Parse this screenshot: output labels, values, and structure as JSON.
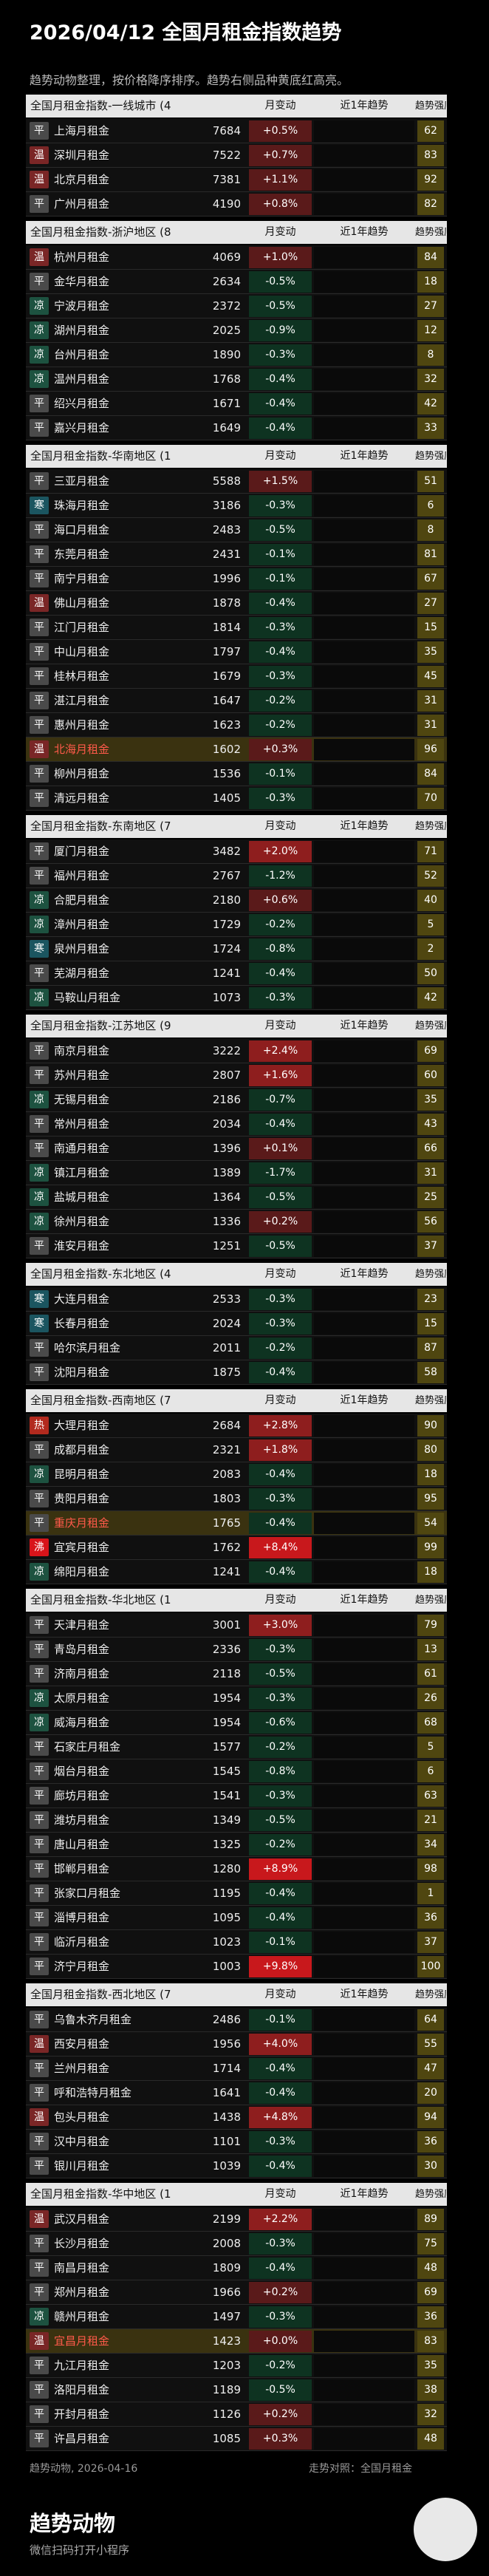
{
  "header": {
    "title": "2026/04/12 全国月租金指数趋势",
    "subtitle": "趋势动物整理，按价格降序排序。趋势右侧品种黄底红高亮。"
  },
  "columns": {
    "change": "月变动",
    "trend": "近1年趋势",
    "strength": "趋势强度"
  },
  "sections": [
    {
      "title": "全国月租金指数-一线城市 (4",
      "rows": [
        {
          "tag": "平",
          "name": "上海月租金",
          "price": 7684,
          "change": "+0.5%",
          "strength": 62
        },
        {
          "tag": "温",
          "name": "深圳月租金",
          "price": 7522,
          "change": "+0.7%",
          "strength": 83
        },
        {
          "tag": "温",
          "name": "北京月租金",
          "price": 7381,
          "change": "+1.1%",
          "strength": 92
        },
        {
          "tag": "平",
          "name": "广州月租金",
          "price": 4190,
          "change": "+0.8%",
          "strength": 82
        }
      ]
    },
    {
      "title": "全国月租金指数-浙沪地区 (8",
      "rows": [
        {
          "tag": "温",
          "name": "杭州月租金",
          "price": 4069,
          "change": "+1.0%",
          "strength": 84
        },
        {
          "tag": "平",
          "name": "金华月租金",
          "price": 2634,
          "change": "-0.5%",
          "strength": 18
        },
        {
          "tag": "凉",
          "name": "宁波月租金",
          "price": 2372,
          "change": "-0.5%",
          "strength": 27
        },
        {
          "tag": "凉",
          "name": "湖州月租金",
          "price": 2025,
          "change": "-0.9%",
          "strength": 12
        },
        {
          "tag": "凉",
          "name": "台州月租金",
          "price": 1890,
          "change": "-0.3%",
          "strength": 8
        },
        {
          "tag": "凉",
          "name": "温州月租金",
          "price": 1768,
          "change": "-0.4%",
          "strength": 32
        },
        {
          "tag": "平",
          "name": "绍兴月租金",
          "price": 1671,
          "change": "-0.4%",
          "strength": 42
        },
        {
          "tag": "平",
          "name": "嘉兴月租金",
          "price": 1649,
          "change": "-0.4%",
          "strength": 33
        }
      ]
    },
    {
      "title": "全国月租金指数-华南地区 (1",
      "rows": [
        {
          "tag": "平",
          "name": "三亚月租金",
          "price": 5588,
          "change": "+1.5%",
          "strength": 51
        },
        {
          "tag": "寒",
          "name": "珠海月租金",
          "price": 3186,
          "change": "-0.3%",
          "strength": 6
        },
        {
          "tag": "平",
          "name": "海口月租金",
          "price": 2483,
          "change": "-0.5%",
          "strength": 8
        },
        {
          "tag": "平",
          "name": "东莞月租金",
          "price": 2431,
          "change": "-0.1%",
          "strength": 81
        },
        {
          "tag": "平",
          "name": "南宁月租金",
          "price": 1996,
          "change": "-0.1%",
          "strength": 67
        },
        {
          "tag": "温",
          "name": "佛山月租金",
          "price": 1878,
          "change": "-0.4%",
          "strength": 27
        },
        {
          "tag": "平",
          "name": "江门月租金",
          "price": 1814,
          "change": "-0.3%",
          "strength": 15
        },
        {
          "tag": "平",
          "name": "中山月租金",
          "price": 1797,
          "change": "-0.4%",
          "strength": 35
        },
        {
          "tag": "平",
          "name": "桂林月租金",
          "price": 1679,
          "change": "-0.3%",
          "strength": 45
        },
        {
          "tag": "平",
          "name": "湛江月租金",
          "price": 1647,
          "change": "-0.2%",
          "strength": 31
        },
        {
          "tag": "平",
          "name": "惠州月租金",
          "price": 1623,
          "change": "-0.2%",
          "strength": 31
        },
        {
          "tag": "温",
          "name": "北海月租金",
          "price": 1602,
          "change": "+0.3%",
          "strength": 96,
          "highlight": true
        },
        {
          "tag": "平",
          "name": "柳州月租金",
          "price": 1536,
          "change": "-0.1%",
          "strength": 84
        },
        {
          "tag": "平",
          "name": "清远月租金",
          "price": 1405,
          "change": "-0.3%",
          "strength": 70
        }
      ]
    },
    {
      "title": "全国月租金指数-东南地区 (7",
      "rows": [
        {
          "tag": "平",
          "name": "厦门月租金",
          "price": 3482,
          "change": "+2.0%",
          "strength": 71
        },
        {
          "tag": "平",
          "name": "福州月租金",
          "price": 2767,
          "change": "-1.2%",
          "strength": 52
        },
        {
          "tag": "凉",
          "name": "合肥月租金",
          "price": 2180,
          "change": "+0.6%",
          "strength": 40
        },
        {
          "tag": "凉",
          "name": "漳州月租金",
          "price": 1729,
          "change": "-0.2%",
          "strength": 5
        },
        {
          "tag": "寒",
          "name": "泉州月租金",
          "price": 1724,
          "change": "-0.8%",
          "strength": 2
        },
        {
          "tag": "平",
          "name": "芜湖月租金",
          "price": 1241,
          "change": "-0.4%",
          "strength": 50
        },
        {
          "tag": "凉",
          "name": "马鞍山月租金",
          "price": 1073,
          "change": "-0.3%",
          "strength": 42
        }
      ]
    },
    {
      "title": "全国月租金指数-江苏地区 (9",
      "rows": [
        {
          "tag": "平",
          "name": "南京月租金",
          "price": 3222,
          "change": "+2.4%",
          "strength": 69
        },
        {
          "tag": "平",
          "name": "苏州月租金",
          "price": 2807,
          "change": "+1.6%",
          "strength": 60
        },
        {
          "tag": "凉",
          "name": "无锡月租金",
          "price": 2186,
          "change": "-0.7%",
          "strength": 35
        },
        {
          "tag": "平",
          "name": "常州月租金",
          "price": 2034,
          "change": "-0.4%",
          "strength": 43
        },
        {
          "tag": "平",
          "name": "南通月租金",
          "price": 1396,
          "change": "+0.1%",
          "strength": 66
        },
        {
          "tag": "凉",
          "name": "镇江月租金",
          "price": 1389,
          "change": "-1.7%",
          "strength": 31
        },
        {
          "tag": "凉",
          "name": "盐城月租金",
          "price": 1364,
          "change": "-0.5%",
          "strength": 25
        },
        {
          "tag": "凉",
          "name": "徐州月租金",
          "price": 1336,
          "change": "+0.2%",
          "strength": 56
        },
        {
          "tag": "平",
          "name": "淮安月租金",
          "price": 1251,
          "change": "-0.5%",
          "strength": 37
        }
      ]
    },
    {
      "title": "全国月租金指数-东北地区 (4",
      "rows": [
        {
          "tag": "寒",
          "name": "大连月租金",
          "price": 2533,
          "change": "-0.3%",
          "strength": 23
        },
        {
          "tag": "寒",
          "name": "长春月租金",
          "price": 2024,
          "change": "-0.3%",
          "strength": 15
        },
        {
          "tag": "平",
          "name": "哈尔滨月租金",
          "price": 2011,
          "change": "-0.2%",
          "strength": 87
        },
        {
          "tag": "平",
          "name": "沈阳月租金",
          "price": 1875,
          "change": "-0.4%",
          "strength": 58
        }
      ]
    },
    {
      "title": "全国月租金指数-西南地区 (7",
      "rows": [
        {
          "tag": "热",
          "name": "大理月租金",
          "price": 2684,
          "change": "+2.8%",
          "strength": 90
        },
        {
          "tag": "平",
          "name": "成都月租金",
          "price": 2321,
          "change": "+1.8%",
          "strength": 80
        },
        {
          "tag": "凉",
          "name": "昆明月租金",
          "price": 2083,
          "change": "-0.4%",
          "strength": 18
        },
        {
          "tag": "平",
          "name": "贵阳月租金",
          "price": 1803,
          "change": "-0.3%",
          "strength": 95
        },
        {
          "tag": "平",
          "name": "重庆月租金",
          "price": 1765,
          "change": "-0.4%",
          "strength": 54,
          "highlight": true
        },
        {
          "tag": "沸",
          "name": "宜宾月租金",
          "price": 1762,
          "change": "+8.4%",
          "strength": 99
        },
        {
          "tag": "凉",
          "name": "绵阳月租金",
          "price": 1241,
          "change": "-0.4%",
          "strength": 18
        }
      ]
    },
    {
      "title": "全国月租金指数-华北地区 (1",
      "rows": [
        {
          "tag": "平",
          "name": "天津月租金",
          "price": 3001,
          "change": "+3.0%",
          "strength": 79
        },
        {
          "tag": "平",
          "name": "青岛月租金",
          "price": 2336,
          "change": "-0.3%",
          "strength": 13
        },
        {
          "tag": "平",
          "name": "济南月租金",
          "price": 2118,
          "change": "-0.5%",
          "strength": 61
        },
        {
          "tag": "凉",
          "name": "太原月租金",
          "price": 1954,
          "change": "-0.3%",
          "strength": 26
        },
        {
          "tag": "凉",
          "name": "威海月租金",
          "price": 1954,
          "change": "-0.6%",
          "strength": 68
        },
        {
          "tag": "平",
          "name": "石家庄月租金",
          "price": 1577,
          "change": "-0.2%",
          "strength": 5
        },
        {
          "tag": "平",
          "name": "烟台月租金",
          "price": 1545,
          "change": "-0.8%",
          "strength": 6
        },
        {
          "tag": "平",
          "name": "廊坊月租金",
          "price": 1541,
          "change": "-0.3%",
          "strength": 63
        },
        {
          "tag": "平",
          "name": "潍坊月租金",
          "price": 1349,
          "change": "-0.5%",
          "strength": 21
        },
        {
          "tag": "平",
          "name": "唐山月租金",
          "price": 1325,
          "change": "-0.2%",
          "strength": 34
        },
        {
          "tag": "平",
          "name": "邯郸月租金",
          "price": 1280,
          "change": "+8.9%",
          "strength": 98
        },
        {
          "tag": "平",
          "name": "张家口月租金",
          "price": 1195,
          "change": "-0.4%",
          "strength": 1
        },
        {
          "tag": "平",
          "name": "淄博月租金",
          "price": 1095,
          "change": "-0.4%",
          "strength": 36
        },
        {
          "tag": "平",
          "name": "临沂月租金",
          "price": 1023,
          "change": "-0.1%",
          "strength": 37
        },
        {
          "tag": "平",
          "name": "济宁月租金",
          "price": 1003,
          "change": "+9.8%",
          "strength": 100
        }
      ]
    },
    {
      "title": "全国月租金指数-西北地区 (7",
      "rows": [
        {
          "tag": "平",
          "name": "乌鲁木齐月租金",
          "price": 2486,
          "change": "-0.1%",
          "strength": 64
        },
        {
          "tag": "温",
          "name": "西安月租金",
          "price": 1956,
          "change": "+4.0%",
          "strength": 55
        },
        {
          "tag": "平",
          "name": "兰州月租金",
          "price": 1714,
          "change": "-0.4%",
          "strength": 47
        },
        {
          "tag": "平",
          "name": "呼和浩特月租金",
          "price": 1641,
          "change": "-0.4%",
          "strength": 20
        },
        {
          "tag": "温",
          "name": "包头月租金",
          "price": 1438,
          "change": "+4.8%",
          "strength": 94
        },
        {
          "tag": "平",
          "name": "汉中月租金",
          "price": 1101,
          "change": "-0.3%",
          "strength": 36
        },
        {
          "tag": "平",
          "name": "银川月租金",
          "price": 1039,
          "change": "-0.4%",
          "strength": 30
        }
      ]
    },
    {
      "title": "全国月租金指数-华中地区 (1",
      "rows": [
        {
          "tag": "温",
          "name": "武汉月租金",
          "price": 2199,
          "change": "+2.2%",
          "strength": 89
        },
        {
          "tag": "平",
          "name": "长沙月租金",
          "price": 2008,
          "change": "-0.3%",
          "strength": 75
        },
        {
          "tag": "平",
          "name": "南昌月租金",
          "price": 1809,
          "change": "-0.4%",
          "strength": 48
        },
        {
          "tag": "平",
          "name": "郑州月租金",
          "price": 1966,
          "change": "+0.2%",
          "strength": 69
        },
        {
          "tag": "凉",
          "name": "赣州月租金",
          "price": 1497,
          "change": "-0.3%",
          "strength": 36
        },
        {
          "tag": "温",
          "name": "宜昌月租金",
          "price": 1423,
          "change": "+0.0%",
          "strength": 83,
          "highlight": true
        },
        {
          "tag": "平",
          "name": "九江月租金",
          "price": 1203,
          "change": "-0.2%",
          "strength": 35
        },
        {
          "tag": "平",
          "name": "洛阳月租金",
          "price": 1189,
          "change": "-0.5%",
          "strength": 38
        },
        {
          "tag": "平",
          "name": "开封月租金",
          "price": 1126,
          "change": "+0.2%",
          "strength": 32
        },
        {
          "tag": "平",
          "name": "许昌月租金",
          "price": 1085,
          "change": "+0.3%",
          "strength": 48
        }
      ]
    }
  ],
  "footer": {
    "source": "趋势动物, 2026-04-16",
    "reference": "走势对照：全国月租金"
  },
  "brand": {
    "name": "趋势动物",
    "caption": "微信扫码打开小程序"
  }
}
